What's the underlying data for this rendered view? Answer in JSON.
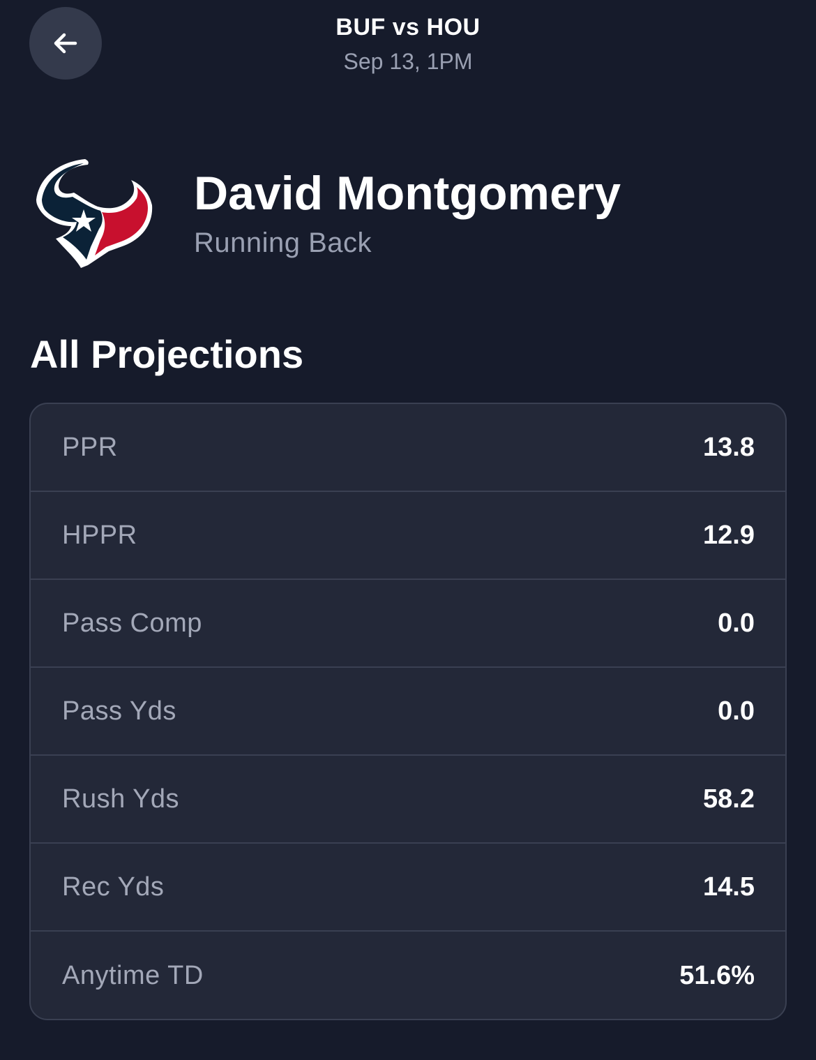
{
  "header": {
    "back_icon": "arrow-left-icon",
    "matchup": "BUF vs HOU",
    "game_time": "Sep 13, 1PM"
  },
  "player": {
    "team_logo": "houston-texans-logo",
    "name": "David Montgomery",
    "position": "Running Back"
  },
  "projections": {
    "title": "All Projections",
    "rows": [
      {
        "label": "PPR",
        "value": "13.8"
      },
      {
        "label": "HPPR",
        "value": "12.9"
      },
      {
        "label": "Pass Comp",
        "value": "0.0"
      },
      {
        "label": "Pass Yds",
        "value": "0.0"
      },
      {
        "label": "Rush Yds",
        "value": "58.2"
      },
      {
        "label": "Rec Yds",
        "value": "14.5"
      },
      {
        "label": "Anytime TD",
        "value": "51.6%"
      }
    ]
  },
  "colors": {
    "background": "#161b2b",
    "card": "#232838",
    "muted_text": "#9aa0b2",
    "team_navy": "#0b2237",
    "team_red": "#c8102e"
  }
}
